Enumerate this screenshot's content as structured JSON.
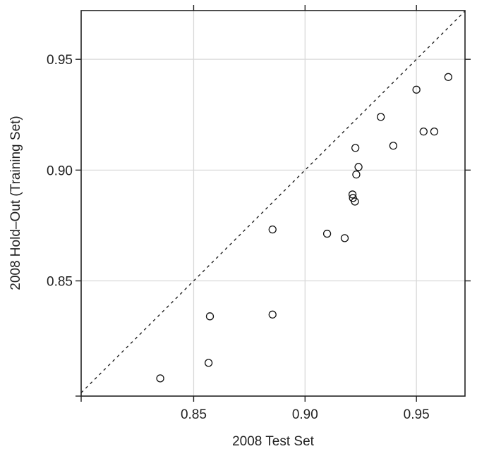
{
  "chart_data": {
    "type": "scatter",
    "title": "",
    "xlabel": "2008 Test Set",
    "ylabel": "2008 Hold–Out (Training Set)",
    "xlim": [
      0.7995,
      0.9718
    ],
    "ylim": [
      0.798,
      0.972
    ],
    "xticks": [
      0.85,
      0.9,
      0.95
    ],
    "yticks": [
      0.85,
      0.9,
      0.95
    ],
    "xtick_labels": [
      "0.85",
      "0.90",
      "0.95"
    ],
    "ytick_labels": [
      "0.85",
      "0.90",
      "0.95"
    ],
    "grid": true,
    "reference_line": "y = x (dashed)",
    "points": [
      {
        "x": 0.835,
        "y": 0.806
      },
      {
        "x": 0.8567,
        "y": 0.813
      },
      {
        "x": 0.8573,
        "y": 0.834
      },
      {
        "x": 0.8854,
        "y": 0.8348
      },
      {
        "x": 0.8854,
        "y": 0.8732
      },
      {
        "x": 0.9099,
        "y": 0.8713
      },
      {
        "x": 0.9178,
        "y": 0.8693
      },
      {
        "x": 0.9213,
        "y": 0.889
      },
      {
        "x": 0.9215,
        "y": 0.8874
      },
      {
        "x": 0.9224,
        "y": 0.8858
      },
      {
        "x": 0.923,
        "y": 0.898
      },
      {
        "x": 0.924,
        "y": 0.9014
      },
      {
        "x": 0.9226,
        "y": 0.91
      },
      {
        "x": 0.9396,
        "y": 0.911
      },
      {
        "x": 0.934,
        "y": 0.924
      },
      {
        "x": 0.9532,
        "y": 0.9174
      },
      {
        "x": 0.958,
        "y": 0.9174
      },
      {
        "x": 0.95,
        "y": 0.9363
      },
      {
        "x": 0.9643,
        "y": 0.942
      }
    ]
  }
}
